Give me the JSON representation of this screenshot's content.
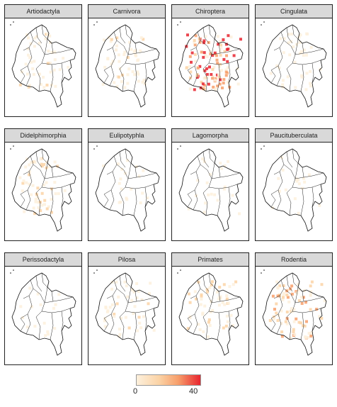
{
  "panels": [
    {
      "title": "Artiodactyla",
      "intensity": 0.3
    },
    {
      "title": "Carnivora",
      "intensity": 0.35
    },
    {
      "title": "Chiroptera",
      "intensity": 0.95
    },
    {
      "title": "Cingulata",
      "intensity": 0.25
    },
    {
      "title": "Didelphimorphia",
      "intensity": 0.4
    },
    {
      "title": "Eulipotyphla",
      "intensity": 0.08
    },
    {
      "title": "Lagomorpha",
      "intensity": 0.1
    },
    {
      "title": "Paucituberculata",
      "intensity": 0.06
    },
    {
      "title": "Perissodactyla",
      "intensity": 0.05
    },
    {
      "title": "Pilosa",
      "intensity": 0.3
    },
    {
      "title": "Primates",
      "intensity": 0.4
    },
    {
      "title": "Rodentia",
      "intensity": 0.65
    }
  ],
  "legend": {
    "min_label": "0",
    "max_label": "40",
    "colors": [
      "#fdf0dc",
      "#fbd3a6",
      "#f79f6b",
      "#e8252f"
    ]
  }
}
